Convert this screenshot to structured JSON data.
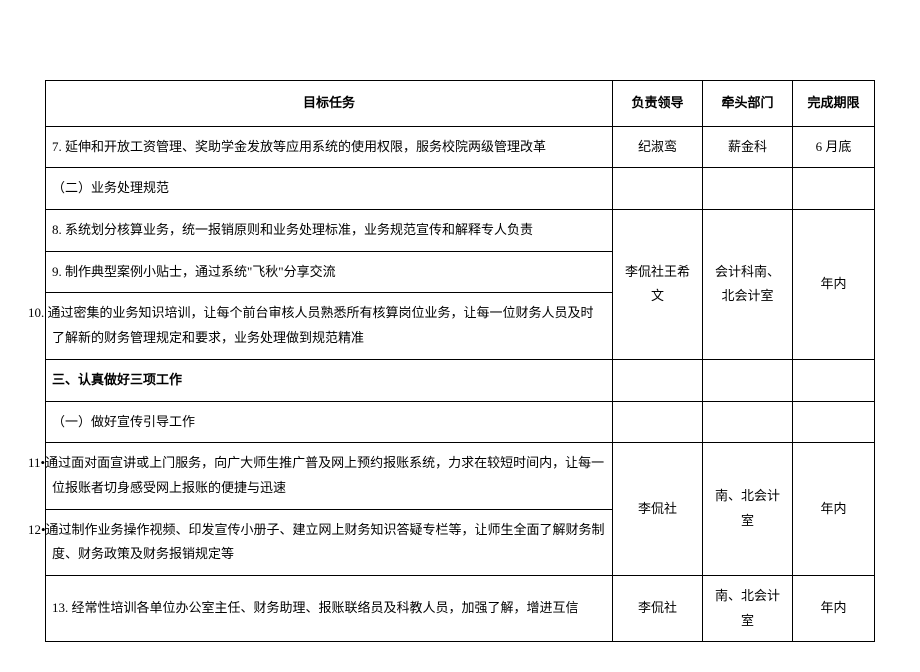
{
  "headers": {
    "task": "目标任务",
    "leader": "负责领导",
    "dept": "牵头部门",
    "deadline": "完成期限"
  },
  "rows": {
    "r7": {
      "task": "7. 延伸和开放工资管理、奖助学金发放等应用系统的使用权限，服务校院两级管理改革",
      "leader": "纪淑鸾",
      "dept": "薪金科",
      "deadline": "6 月底"
    },
    "sub1": {
      "task": "（二）业务处理规范"
    },
    "r8": {
      "task": "8. 系统划分核算业务，统一报销原则和业务处理标准，业务规范宣传和解释专人负责"
    },
    "r9": {
      "task": "9. 制作典型案例小贴士，通过系统\"飞秋\"分享交流"
    },
    "r10": {
      "task": "10. 通过密集的业务知识培训，让每个前台审核人员熟悉所有核算岗位业务，让每一位财务人员及时了解新的财务管理规定和要求，业务处理做到规范精准"
    },
    "group1": {
      "leader": "李侃社王希文",
      "dept": "会计科南、北会计室",
      "deadline": "年内"
    },
    "sec3": {
      "task": "三、认真做好三项工作"
    },
    "sub2": {
      "task": "（一）做好宣传引导工作"
    },
    "r11": {
      "task": "11•通过面对面宣讲或上门服务，向广大师生推广普及网上预约报账系统，力求在较短时间内，让每一位报账者切身感受网上报账的便捷与迅速"
    },
    "r12": {
      "task": "12•通过制作业务操作视频、印发宣传小册子、建立网上财务知识答疑专栏等，让师生全面了解财务制度、财务政策及财务报销规定等"
    },
    "group2": {
      "leader": "李侃社",
      "dept": "南、北会计室",
      "deadline": "年内"
    },
    "r13": {
      "task": "13. 经常性培训各单位办公室主任、财务助理、报账联络员及科教人员，加强了解，增进互信",
      "leader": "李侃社",
      "dept": "南、北会计室",
      "deadline": "年内"
    }
  },
  "style": {
    "border_color": "#000000",
    "background": "#ffffff",
    "font_size_body": 13,
    "font_size_header": 13
  }
}
